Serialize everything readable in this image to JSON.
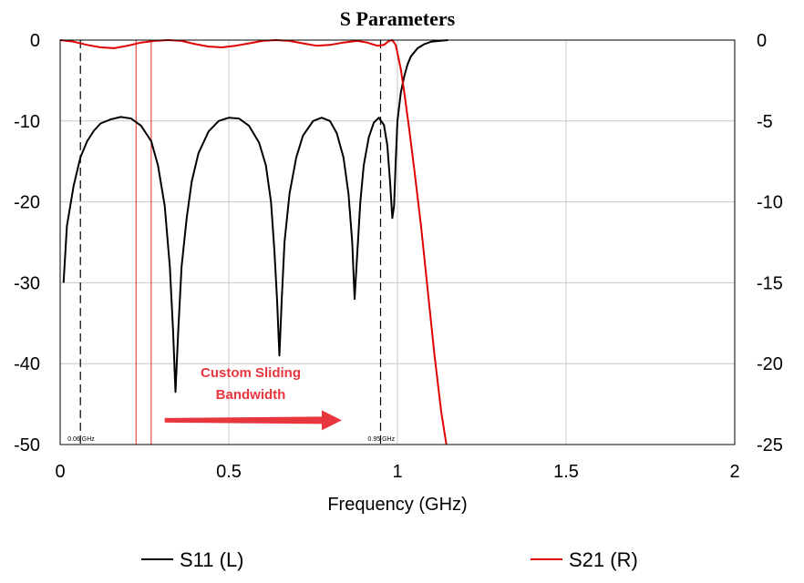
{
  "chart_data": {
    "type": "line",
    "title": "S Parameters",
    "xlabel": "Frequency (GHz)",
    "xlim": [
      0,
      2
    ],
    "ylim_left": [
      -50,
      0
    ],
    "ylim_right": [
      -25,
      0
    ],
    "x_ticks": [
      "0",
      "0.5",
      "1",
      "1.5",
      "2"
    ],
    "y_ticks_left": [
      "0",
      "-10",
      "-20",
      "-30",
      "-40",
      "-50"
    ],
    "y_ticks_right": [
      "0",
      "-5",
      "-10",
      "-15",
      "-20",
      "-25"
    ],
    "grid": true,
    "colors": {
      "s11": "#000000",
      "s21": "#e00000",
      "annotation": "#e8363e"
    },
    "series": [
      {
        "name": "S11 (L)",
        "axis": "left",
        "points": [
          [
            0.01,
            -30
          ],
          [
            0.02,
            -23
          ],
          [
            0.04,
            -18
          ],
          [
            0.06,
            -14.5
          ],
          [
            0.08,
            -12.5
          ],
          [
            0.1,
            -11.2
          ],
          [
            0.12,
            -10.3
          ],
          [
            0.15,
            -9.8
          ],
          [
            0.18,
            -9.5
          ],
          [
            0.21,
            -9.7
          ],
          [
            0.24,
            -10.6
          ],
          [
            0.27,
            -12.5
          ],
          [
            0.29,
            -15.5
          ],
          [
            0.31,
            -20.5
          ],
          [
            0.325,
            -28
          ],
          [
            0.335,
            -36
          ],
          [
            0.342,
            -43.5
          ],
          [
            0.35,
            -36
          ],
          [
            0.36,
            -28
          ],
          [
            0.375,
            -22
          ],
          [
            0.39,
            -17.5
          ],
          [
            0.41,
            -14
          ],
          [
            0.44,
            -11.3
          ],
          [
            0.47,
            -10
          ],
          [
            0.5,
            -9.6
          ],
          [
            0.53,
            -9.7
          ],
          [
            0.56,
            -10.6
          ],
          [
            0.59,
            -12.7
          ],
          [
            0.61,
            -15.5
          ],
          [
            0.625,
            -20
          ],
          [
            0.635,
            -26
          ],
          [
            0.643,
            -32
          ],
          [
            0.65,
            -39
          ],
          [
            0.657,
            -32
          ],
          [
            0.665,
            -25
          ],
          [
            0.68,
            -19
          ],
          [
            0.7,
            -14.5
          ],
          [
            0.72,
            -11.8
          ],
          [
            0.75,
            -10
          ],
          [
            0.775,
            -9.6
          ],
          [
            0.8,
            -10
          ],
          [
            0.82,
            -11.5
          ],
          [
            0.84,
            -14.5
          ],
          [
            0.855,
            -19
          ],
          [
            0.866,
            -25
          ],
          [
            0.873,
            -32
          ],
          [
            0.88,
            -27
          ],
          [
            0.89,
            -20
          ],
          [
            0.9,
            -15.5
          ],
          [
            0.915,
            -12
          ],
          [
            0.93,
            -10.2
          ],
          [
            0.945,
            -9.6
          ],
          [
            0.96,
            -10.5
          ],
          [
            0.97,
            -13
          ],
          [
            0.978,
            -17.5
          ],
          [
            0.985,
            -22
          ],
          [
            0.99,
            -20.5
          ],
          [
            0.995,
            -15
          ],
          [
            1.0,
            -10
          ],
          [
            1.01,
            -6.5
          ],
          [
            1.02,
            -4.5
          ],
          [
            1.03,
            -3
          ],
          [
            1.04,
            -2
          ],
          [
            1.06,
            -1
          ],
          [
            1.08,
            -0.5
          ],
          [
            1.1,
            -0.2
          ],
          [
            1.15,
            0
          ]
        ]
      },
      {
        "name": "S21 (R)",
        "axis": "right",
        "points": [
          [
            0.0,
            0
          ],
          [
            0.04,
            -0.1
          ],
          [
            0.08,
            -0.3
          ],
          [
            0.12,
            -0.45
          ],
          [
            0.16,
            -0.5
          ],
          [
            0.2,
            -0.35
          ],
          [
            0.24,
            -0.15
          ],
          [
            0.28,
            -0.05
          ],
          [
            0.32,
            0
          ],
          [
            0.36,
            -0.05
          ],
          [
            0.4,
            -0.25
          ],
          [
            0.44,
            -0.4
          ],
          [
            0.48,
            -0.45
          ],
          [
            0.52,
            -0.35
          ],
          [
            0.56,
            -0.2
          ],
          [
            0.6,
            -0.05
          ],
          [
            0.64,
            0
          ],
          [
            0.68,
            -0.05
          ],
          [
            0.72,
            -0.2
          ],
          [
            0.76,
            -0.35
          ],
          [
            0.8,
            -0.3
          ],
          [
            0.84,
            -0.15
          ],
          [
            0.88,
            -0.05
          ],
          [
            0.91,
            -0.15
          ],
          [
            0.94,
            -0.35
          ],
          [
            0.96,
            -0.3
          ],
          [
            0.975,
            -0.05
          ],
          [
            0.985,
            0
          ],
          [
            0.995,
            -0.3
          ],
          [
            1.0,
            -0.8
          ],
          [
            1.01,
            -1.8
          ],
          [
            1.02,
            -3.2
          ],
          [
            1.035,
            -5.5
          ],
          [
            1.05,
            -8
          ],
          [
            1.07,
            -11.5
          ],
          [
            1.09,
            -15.5
          ],
          [
            1.11,
            -19.5
          ],
          [
            1.13,
            -23
          ],
          [
            1.145,
            -25
          ]
        ]
      }
    ],
    "markers": [
      {
        "x": 0.06,
        "label": "0.06 GHz",
        "style": "dashed",
        "color": "#000000"
      },
      {
        "x": 0.95,
        "label": "0.95 GHz",
        "style": "dashed",
        "color": "#000000"
      }
    ],
    "bandwidth_lines": [
      {
        "x": 0.225,
        "color": "#e00000"
      },
      {
        "x": 0.27,
        "color": "#e00000"
      }
    ],
    "annotation": {
      "lines": [
        "Custom Sliding",
        "Bandwidth"
      ],
      "arrow_from_x": 0.31,
      "arrow_to_x": 0.835,
      "arrow_y": -47
    },
    "legend": {
      "placement": "bottom",
      "entries": [
        "S11 (L)",
        "S21 (R)"
      ]
    }
  }
}
